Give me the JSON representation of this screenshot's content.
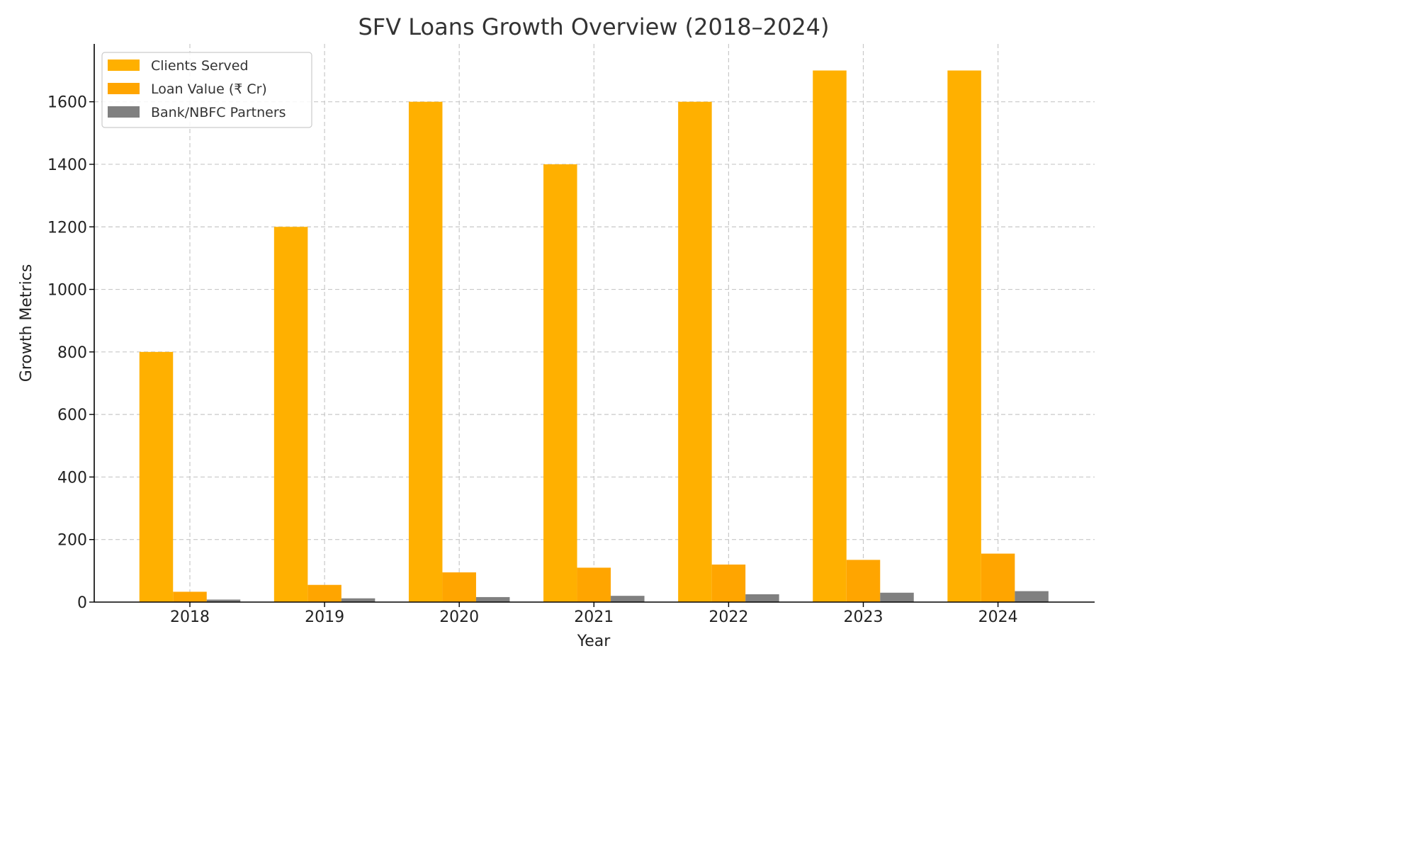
{
  "chart_data": {
    "type": "bar",
    "title": "SFV Loans Growth Overview (2018–2024)",
    "xlabel": "Year",
    "ylabel": "Growth Metrics",
    "categories": [
      "2018",
      "2019",
      "2020",
      "2021",
      "2022",
      "2023",
      "2024"
    ],
    "yticks": [
      0,
      200,
      400,
      600,
      800,
      1000,
      1200,
      1400,
      1600
    ],
    "ylim": [
      0,
      1785
    ],
    "grid": true,
    "legend_position": "top-left",
    "series": [
      {
        "name": "Clients Served",
        "color": "#FFB000",
        "values": [
          800,
          1200,
          1600,
          1400,
          1600,
          1700,
          1700
        ]
      },
      {
        "name": "Loan Value (₹ Cr)",
        "color": "#FFA500",
        "values": [
          33,
          55,
          95,
          110,
          120,
          135,
          155
        ]
      },
      {
        "name": "Bank/NBFC Partners",
        "color": "#808080",
        "values": [
          8,
          12,
          16,
          20,
          25,
          30,
          35
        ]
      }
    ]
  }
}
